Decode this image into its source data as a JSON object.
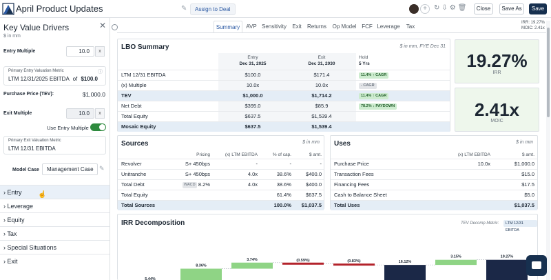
{
  "header": {
    "title": "April Product Updates",
    "assign_label": "Assign to Deal",
    "close_label": "Close",
    "saveas_label": "Save As",
    "save_label": "Save"
  },
  "sidebar": {
    "title": "Key Value Drivers",
    "unit": "$ in mm",
    "entry_multiple_label": "Entry Multiple",
    "entry_multiple_value": "10.0",
    "x_label": "x",
    "primary_entry_metric_label": "Primary Entry Valuation Metric",
    "primary_entry_metric_value": "LTM 12/31/2025 EBITDA",
    "of_label": "of",
    "primary_entry_metric_amount": "$100.0",
    "purchase_price_label": "Purchase Price (TEV):",
    "purchase_price_value": "$1,000.0",
    "exit_multiple_label": "Exit Multiple",
    "exit_multiple_value": "10.0",
    "use_entry_multiple_label": "Use Entry Multiple",
    "primary_exit_metric_label": "Primary Exit Valuation Metric",
    "primary_exit_metric_value": "LTM 12/31 EBITDA",
    "model_case_label": "Model Case",
    "model_case_value": "Management Case",
    "sections": [
      "Entry",
      "Leverage",
      "Equity",
      "Tax",
      "Special Situations",
      "Exit"
    ]
  },
  "tabs": [
    "Summary",
    "AVP",
    "Sensitivity",
    "Exit",
    "Returns",
    "Op Model",
    "FCF",
    "Leverage",
    "Tax"
  ],
  "top_metrics": {
    "irr_label": "IRR:",
    "irr_value": "19.27%",
    "moic_label": "MOIC:",
    "moic_value": "2.41x"
  },
  "lbo": {
    "title": "LBO Summary",
    "note": "$ in mm, FYE Dec 31",
    "cols": {
      "entry_top": "Entry",
      "entry_date": "Dec 31, 2025",
      "exit_top": "Exit",
      "exit_date": "Dec 31, 2030",
      "hold_top": "Hold",
      "hold_val": "5 Yrs"
    },
    "rows": [
      {
        "label": "LTM 12/31 EBITDA",
        "entry": "$100.0",
        "exit": "$171.4",
        "badge": "11.4% ↑ CAGR",
        "badge_style": "green"
      },
      {
        "label": "(x) Multiple",
        "entry": "10.0x",
        "exit": "10.0x",
        "badge": "- CAGR",
        "badge_style": "grey"
      },
      {
        "label": "TEV",
        "entry": "$1,000.0",
        "exit": "$1,714.2",
        "badge": "11.4% ↑ CAGR",
        "badge_style": "green",
        "hl": true
      },
      {
        "label": "Net Debt",
        "entry": "$395.0",
        "exit": "$85.9",
        "badge": "78.2% ↓ PAYDOWN",
        "badge_style": "green"
      },
      {
        "label": "Total Equity",
        "entry": "$637.5",
        "exit": "$1,539.4",
        "badge": "",
        "badge_style": ""
      },
      {
        "label": "Mosaic Equity",
        "entry": "$637.5",
        "exit": "$1,539.4",
        "badge": "",
        "badge_style": "",
        "hl": true
      }
    ]
  },
  "kpi": {
    "irr_value": "19.27%",
    "irr_label": "IRR",
    "moic_value": "2.41x",
    "moic_label": "MOIC"
  },
  "sources": {
    "title": "Sources",
    "note": "$ in mm",
    "headers": [
      "Pricing",
      "(x) LTM EBITDA",
      "% of cap.",
      "$ amt."
    ],
    "rows": [
      {
        "label": "Revolver",
        "pricing": "S+ 450bps",
        "mult": "-",
        "pct": "-",
        "amt": "-"
      },
      {
        "label": "Unitranche",
        "pricing": "S+ 450bps",
        "mult": "4.0x",
        "pct": "38.6%",
        "amt": "$400.0"
      },
      {
        "label": "Total Debt",
        "tag": "WACD",
        "pricing": "8.2%",
        "mult": "4.0x",
        "pct": "38.6%",
        "amt": "$400.0"
      },
      {
        "label": "Total Equity",
        "pricing": "",
        "mult": "",
        "pct": "61.4%",
        "amt": "$637.5"
      },
      {
        "label": "Total Sources",
        "pricing": "",
        "mult": "",
        "pct": "100.0%",
        "amt": "$1,037.5",
        "hl": true
      }
    ]
  },
  "uses": {
    "title": "Uses",
    "note": "$ in mm",
    "headers": [
      "(x) LTM EBITDA",
      "$ amt."
    ],
    "rows": [
      {
        "label": "Purchase Price",
        "mult": "10.0x",
        "amt": "$1,000.0"
      },
      {
        "label": "Transaction Fees",
        "mult": "",
        "amt": "$15.0"
      },
      {
        "label": "Financing Fees",
        "mult": "",
        "amt": "$17.5"
      },
      {
        "label": "Cash to Balance Sheet",
        "mult": "",
        "amt": "$5.0"
      },
      {
        "label": "Total Uses",
        "mult": "",
        "amt": "$1,037.5",
        "hl": true
      }
    ]
  },
  "irr_decomp": {
    "title": "IRR Decomposition",
    "metric_label": "TEV Decomp Metric:",
    "metric_value": "LTM 12/31 EBITDA"
  },
  "chart_data": {
    "type": "bar",
    "title": "IRR Decomposition",
    "values_pct": [
      5.44,
      8.36,
      3.74,
      -0.59,
      -0.83,
      16.12,
      3.15,
      19.27
    ],
    "labels": [
      "5.44%",
      "8.36%",
      "3.74%",
      "(0.59%)",
      "(0.83%)",
      "16.12%",
      "3.15%",
      "19.27%"
    ],
    "colors": {
      "green": "#8fd485",
      "red": "#b3232b",
      "navy": "#1b2847"
    }
  },
  "colors": {
    "primary": "#17304f",
    "accent": "#2b59a3",
    "highlight": "#e4edf6",
    "kpi_bg": "#eef7ec"
  }
}
